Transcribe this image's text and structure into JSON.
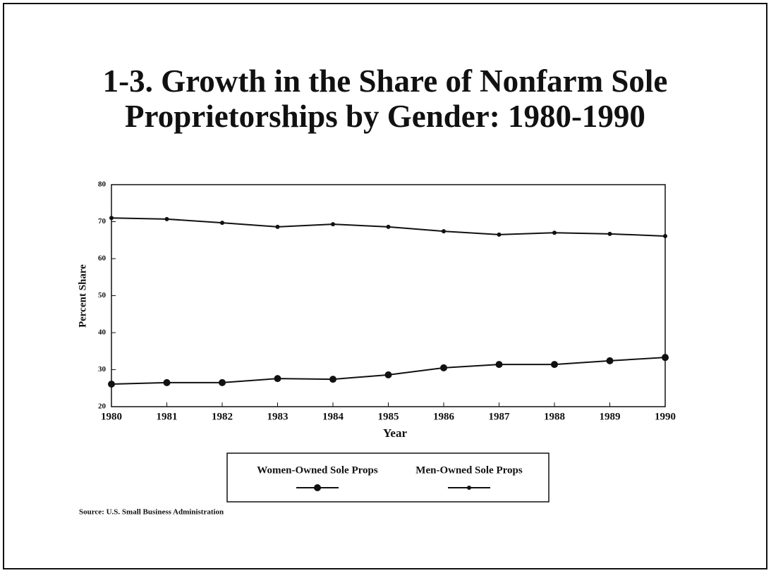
{
  "chart_data": {
    "type": "line",
    "title": "1-3. Growth in the Share of Nonfarm Sole Proprietorships by Gender: 1980-1990",
    "x_label": "Year",
    "y_label": "Percent Share",
    "x": [
      1980,
      1981,
      1982,
      1983,
      1984,
      1985,
      1986,
      1987,
      1988,
      1989,
      1990
    ],
    "series": [
      {
        "name": "Women-Owned Sole Props",
        "color": "#111111",
        "values": [
          26.1,
          26.5,
          26.5,
          27.6,
          27.4,
          28.6,
          30.5,
          31.4,
          31.4,
          32.4,
          33.3
        ]
      },
      {
        "name": "Men-Owned Sole Props",
        "color": "#111111",
        "values": [
          71.0,
          70.7,
          69.7,
          68.6,
          69.3,
          68.6,
          67.4,
          66.5,
          67.0,
          66.7,
          66.1
        ]
      }
    ],
    "xlim": [
      1980,
      1990
    ],
    "xticks": [
      1980,
      1981,
      1982,
      1983,
      1984,
      1985,
      1986,
      1987,
      1988,
      1989,
      1990
    ],
    "ylim": [
      20,
      80
    ],
    "yticks": [
      20,
      30,
      40,
      50,
      60,
      70,
      80
    ],
    "grid": false,
    "legend": "bottom",
    "source": "Source: U.S. Small Business Administration"
  }
}
